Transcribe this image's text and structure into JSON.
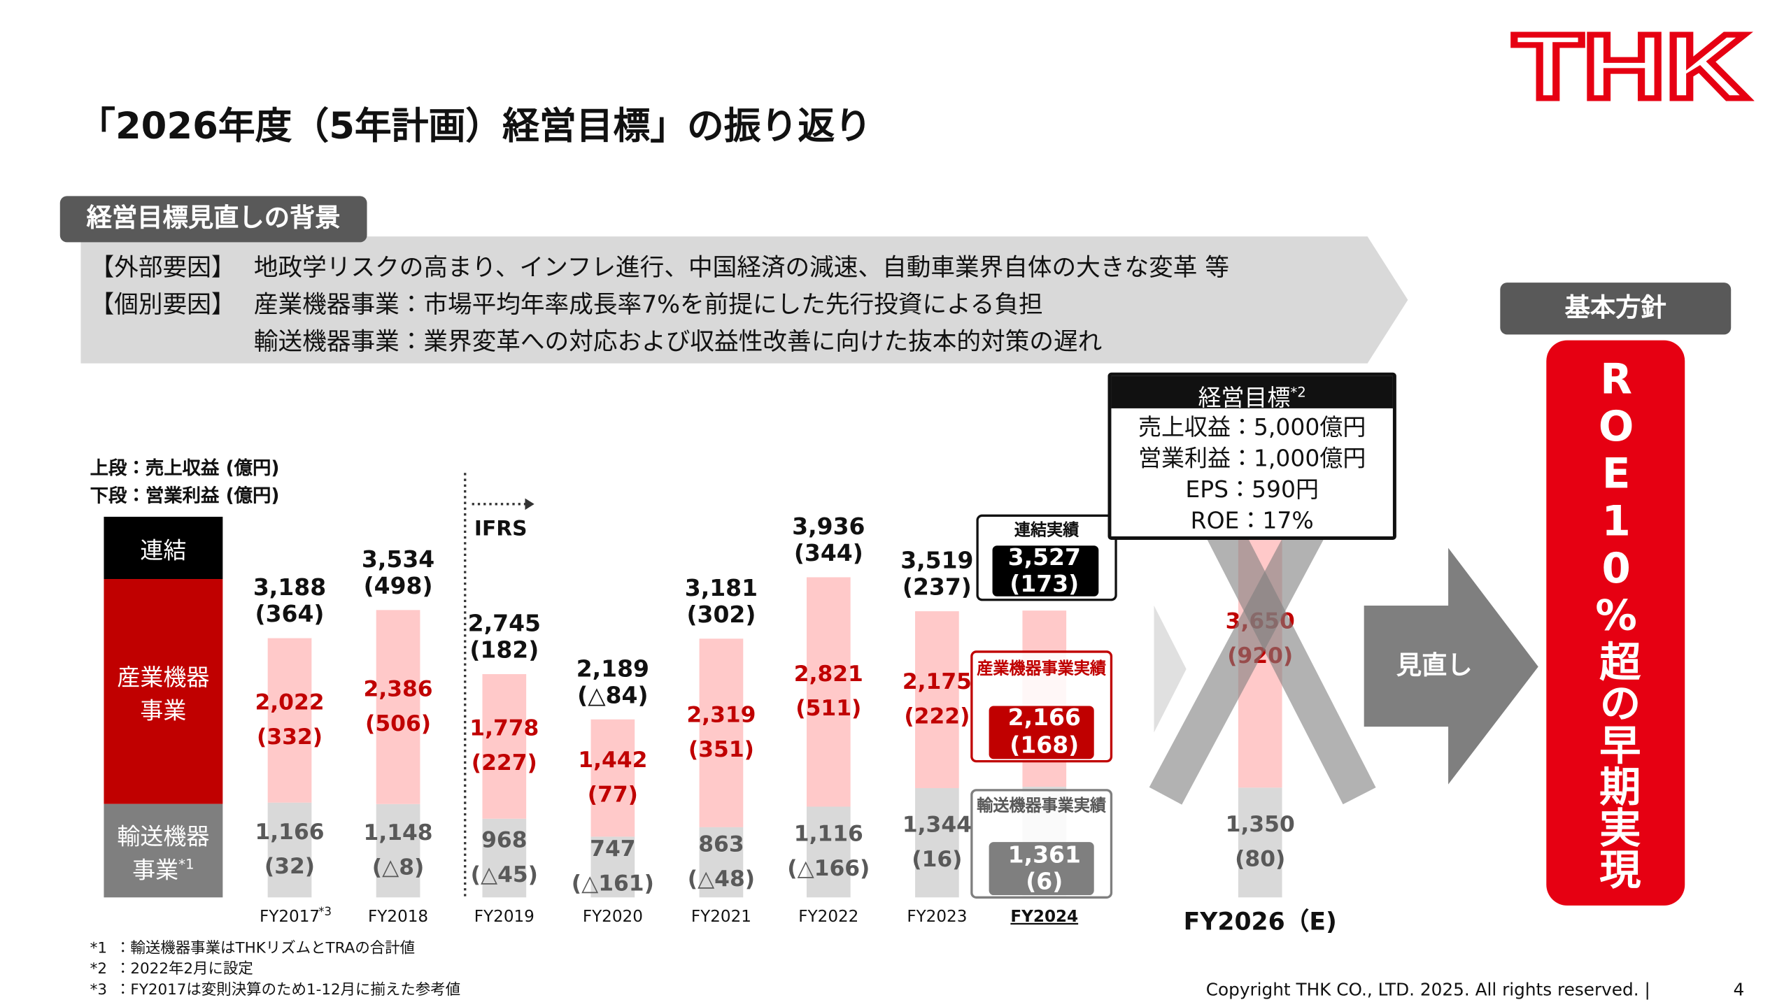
{
  "header": {
    "title": "「2026年度（5年計画）経営目標」の振り返り",
    "logo": "THK"
  },
  "background": {
    "label": "経営目標見直しの背景",
    "lines": [
      {
        "tag": "【外部要因】",
        "text": "地政学リスクの高まり、インフレ進行、中国経済の減速、自動車業界自体の大きな変革 等"
      },
      {
        "tag": "【個別要因】",
        "text": "産業機器事業：市場平均年率成長率7%を前提にした先行投資による負担"
      },
      {
        "tag": null,
        "text": "輸送機器事業：業界変革への対応および収益性改善に向けた抜本的対策の遅れ"
      }
    ]
  },
  "chart_data": {
    "type": "stacked-bar",
    "units": [
      "上段：売上収益 (億円)",
      "下段：営業利益 (億円)"
    ],
    "consolidated": "連結",
    "ifrs": "IFRS",
    "categories": [
      "FY2017",
      "FY2018",
      "FY2019",
      "FY2020",
      "FY2021",
      "FY2022",
      "FY2023",
      "FY2024",
      "FY2026（E)"
    ],
    "category_note": "*3",
    "series": [
      {
        "name": "産業機器事業",
        "color": "#ffc9c9",
        "legend_color": "#c00000",
        "label_color": "#c00000",
        "values": [
          2022,
          2386,
          1778,
          1442,
          2319,
          2821,
          2175,
          2166,
          3650
        ],
        "value_labels": [
          "2,022",
          "2,386",
          "1,778",
          "1,442",
          "2,319",
          "2,821",
          "2,175",
          "2,166",
          "3,650"
        ],
        "profit": [
          332,
          506,
          227,
          77,
          351,
          511,
          222,
          168,
          920
        ],
        "profit_labels": [
          "(332)",
          "(506)",
          "(227)",
          "(77)",
          "(351)",
          "(511)",
          "(222)",
          "(168)",
          "(920)"
        ]
      },
      {
        "name": "輸送機器事業",
        "note": "*1",
        "color": "#d9d9d9",
        "legend_color": "#7f7f7f",
        "label_color": "#595959",
        "values": [
          1166,
          1148,
          968,
          747,
          863,
          1116,
          1344,
          1361,
          1350
        ],
        "value_labels": [
          "1,166",
          "1,148",
          "968",
          "747",
          "863",
          "1,116",
          "1,344",
          "1,361",
          "1,350"
        ],
        "profit": [
          32,
          -8,
          -45,
          -161,
          -48,
          -166,
          16,
          6,
          80
        ],
        "profit_labels": [
          "(32)",
          "(△8)",
          "(△45)",
          "(△161)",
          "(△48)",
          "(△166)",
          "(16)",
          "(6)",
          "(80)"
        ]
      }
    ],
    "totals": [
      3188,
      3534,
      2745,
      2189,
      3181,
      3936,
      3519,
      3527,
      null
    ],
    "total_labels": [
      "3,188",
      "3,534",
      "2,745",
      "2,189",
      "3,181",
      "3,936",
      "3,519",
      "3,527",
      null
    ],
    "total_profit": [
      364,
      498,
      182,
      -84,
      302,
      344,
      237,
      173,
      null
    ],
    "total_profit_labels": [
      "(364)",
      "(498)",
      "(182)",
      "(△84)",
      "(302)",
      "(344)",
      "(237)",
      "(173)",
      null
    ],
    "highlight_labels": [
      "連結実績",
      "産業機器事業実績",
      "輸送機器事業実績"
    ],
    "goal": {
      "title": "経営目標",
      "note": "*2",
      "lines": [
        "売上収益：5,000億円",
        "営業利益：1,000億円",
        "EPS：590円",
        "ROE：17%"
      ]
    }
  },
  "review": {
    "arrow": "見直し",
    "policy_label": "基本方針",
    "policy": "ROE10%超の早期実現"
  },
  "footnotes": [
    {
      "mark": "*1",
      "text": "：輸送機器事業はTHKリズムとTRAの合計値"
    },
    {
      "mark": "*2",
      "text": "：2022年2月に設定"
    },
    {
      "mark": "*3",
      "text": "：FY2017は変則決算のため1-12月に揃えた参考値"
    }
  ],
  "footer": {
    "copyright": "Copyright THK CO., LTD. 2025. All rights reserved. |",
    "page": "4"
  }
}
